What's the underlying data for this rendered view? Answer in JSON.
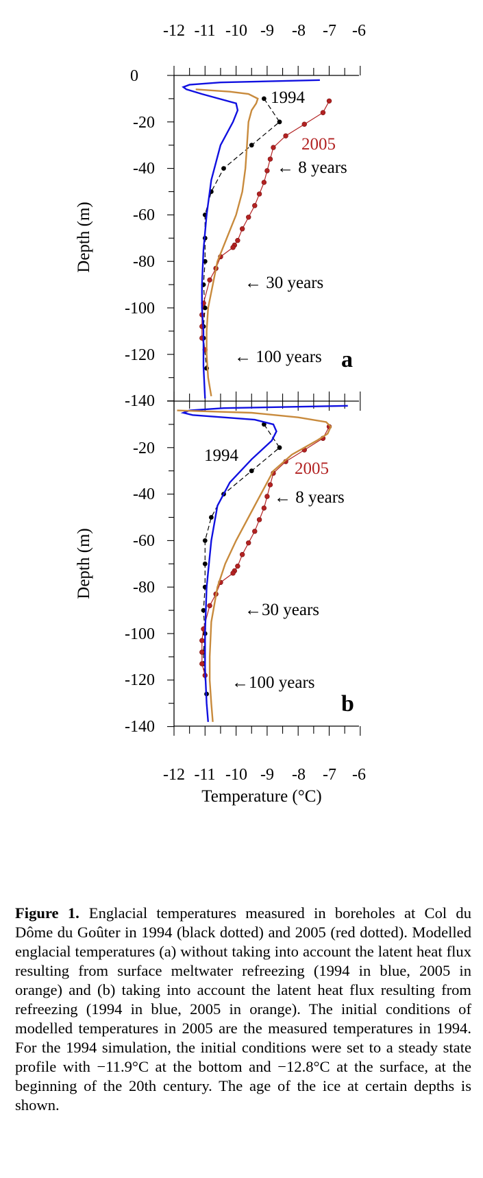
{
  "figure": {
    "x_tick_labels": [
      "-12",
      "-11",
      "-10",
      "-9",
      "-8",
      "-7",
      "-6"
    ],
    "y_tick_labels_a": [
      "0",
      "-20",
      "-40",
      "-60",
      "-80",
      "-100",
      "-120",
      "-140"
    ],
    "y_tick_labels_b": [
      "-20",
      "-40",
      "-60",
      "-80",
      "-100",
      "-120",
      "-140"
    ],
    "ylabel": "Depth (m)",
    "xlabel": "Temperature (°C)",
    "series_colors": {
      "measured_1994": "#000000",
      "measured_2005": "#b22222",
      "model_1994": "#1010e0",
      "model_2005": "#c88a3c"
    },
    "panels": [
      {
        "panel_label": "a",
        "label_1994": "1994",
        "label_2005": "2005",
        "age_8": "← 8 years",
        "age_30": "← 30 years",
        "age_100": "← 100 years"
      },
      {
        "panel_label": "b",
        "label_1994": "1994",
        "label_2005": "2005",
        "age_8": "← 8 years",
        "age_30": "←30 years",
        "age_100": "←100 years"
      }
    ]
  },
  "chart_data": [
    {
      "type": "line",
      "panel": "a",
      "xlabel": "",
      "ylabel": "Depth (m)",
      "xlim": [
        -12,
        -6
      ],
      "ylim": [
        -140,
        0
      ],
      "series": [
        {
          "name": "1994",
          "kind": "measured",
          "x": [
            -9.1,
            -8.6,
            -9.5,
            -10.4,
            -10.8,
            -11.0,
            -11.0,
            -11.0,
            -11.05,
            -11.0,
            -11.05,
            -11.05,
            -10.95
          ],
          "y": [
            -10,
            -20,
            -30,
            -40,
            -50,
            -60,
            -70,
            -80,
            -90,
            -100,
            -108,
            -113,
            -126
          ]
        },
        {
          "name": "2005",
          "kind": "measured",
          "x": [
            -7.0,
            -7.2,
            -7.8,
            -8.4,
            -8.8,
            -8.9,
            -9.0,
            -9.1,
            -9.25,
            -9.4,
            -9.6,
            -9.8,
            -9.95,
            -10.05,
            -10.1,
            -10.5,
            -10.65,
            -10.85,
            -11.05,
            -11.1,
            -11.1,
            -11.1,
            -11.0
          ],
          "y": [
            -11,
            -16,
            -21,
            -26,
            -31,
            -36,
            -41,
            -46,
            -51,
            -56,
            -61,
            -66,
            -71,
            -73,
            -74,
            -78,
            -83,
            -88,
            -98,
            -103,
            -108,
            -113,
            -118
          ]
        },
        {
          "kind": "model_1994",
          "x": [
            -7.3,
            -10.5,
            -11.5,
            -11.7,
            -11.6,
            -11.1,
            -10.0,
            -9.95,
            -10.1,
            -10.5,
            -10.8,
            -10.95,
            -11.05,
            -11.1,
            -11.1,
            -11.05,
            -11.05,
            -11.0
          ],
          "y": [
            -2,
            -3,
            -4,
            -5,
            -6,
            -8,
            -12,
            -15,
            -20,
            -30,
            -45,
            -60,
            -75,
            -90,
            -100,
            -110,
            -125,
            -139
          ]
        },
        {
          "kind": "model_2005",
          "x": [
            -11.3,
            -10.2,
            -9.6,
            -9.3,
            -9.35,
            -9.5,
            -9.6,
            -9.65,
            -9.7,
            -9.8,
            -10.0,
            -10.3,
            -10.6,
            -10.75,
            -10.9,
            -10.95,
            -10.95,
            -10.9,
            -10.8
          ],
          "y": [
            -6,
            -7,
            -8,
            -10,
            -12,
            -15,
            -20,
            -30,
            -40,
            -50,
            -60,
            -70,
            -80,
            -90,
            -100,
            -110,
            -120,
            -130,
            -138
          ]
        }
      ]
    },
    {
      "type": "line",
      "panel": "b",
      "xlabel": "Temperature (°C)",
      "ylabel": "Depth (m)",
      "xlim": [
        -12,
        -6
      ],
      "ylim": [
        -140,
        0
      ],
      "series": [
        {
          "name": "1994",
          "kind": "measured",
          "x": [
            -9.1,
            -8.6,
            -9.5,
            -10.4,
            -10.8,
            -11.0,
            -11.0,
            -11.0,
            -11.05,
            -11.0,
            -11.05,
            -11.05,
            -10.95
          ],
          "y": [
            -10,
            -20,
            -30,
            -40,
            -50,
            -60,
            -70,
            -80,
            -90,
            -100,
            -108,
            -113,
            -126
          ]
        },
        {
          "name": "2005",
          "kind": "measured",
          "x": [
            -7.0,
            -7.2,
            -7.8,
            -8.4,
            -8.8,
            -8.9,
            -9.0,
            -9.1,
            -9.25,
            -9.4,
            -9.6,
            -9.8,
            -9.95,
            -10.05,
            -10.1,
            -10.5,
            -10.65,
            -10.85,
            -11.05,
            -11.1,
            -11.1,
            -11.1,
            -11.0
          ],
          "y": [
            -11,
            -16,
            -21,
            -26,
            -31,
            -36,
            -41,
            -46,
            -51,
            -56,
            -61,
            -66,
            -71,
            -73,
            -74,
            -78,
            -83,
            -88,
            -98,
            -103,
            -108,
            -113,
            -118
          ]
        },
        {
          "kind": "model_1994",
          "x": [
            -6.4,
            -10.4,
            -11.5,
            -11.7,
            -11.4,
            -10.4,
            -9.4,
            -8.8,
            -8.7,
            -8.85,
            -9.5,
            -10.2,
            -10.6,
            -10.8,
            -10.95,
            -11.0,
            -11.0,
            -10.95,
            -10.9
          ],
          "y": [
            -2,
            -3,
            -4,
            -5,
            -6,
            -7,
            -8,
            -10,
            -13,
            -17,
            -25,
            -35,
            -45,
            -60,
            -80,
            -100,
            -115,
            -130,
            -138
          ]
        },
        {
          "kind": "model_2005",
          "x": [
            -11.9,
            -9.5,
            -8.0,
            -7.1,
            -6.95,
            -7.05,
            -7.4,
            -8.2,
            -8.8,
            -9.2,
            -9.6,
            -10.0,
            -10.35,
            -10.6,
            -10.8,
            -10.85,
            -10.85,
            -10.8,
            -10.75
          ],
          "y": [
            -4,
            -5,
            -7,
            -9,
            -11,
            -14,
            -17,
            -23,
            -30,
            -40,
            -50,
            -60,
            -70,
            -80,
            -95,
            -110,
            -120,
            -130,
            -138
          ]
        }
      ]
    }
  ],
  "caption": {
    "label": "Figure 1.",
    "text": "Englacial temperatures measured in boreholes at Col du Dôme du Goûter in 1994 (black dotted) and 2005 (red dotted). Modelled englacial temperatures (a) without taking into account the latent heat flux resulting from surface meltwater refreezing (1994 in blue, 2005 in orange) and (b) taking into account the latent heat flux resulting from refreezing (1994 in blue, 2005 in orange). The initial conditions of modelled temperatures in 2005 are the measured temperatures in 1994. For the 1994 simulation, the initial conditions were set to a steady state profile with −11.9°C at the bottom and −12.8°C at the surface, at the beginning of the 20th century. The age of the ice at certain depths is shown."
  }
}
